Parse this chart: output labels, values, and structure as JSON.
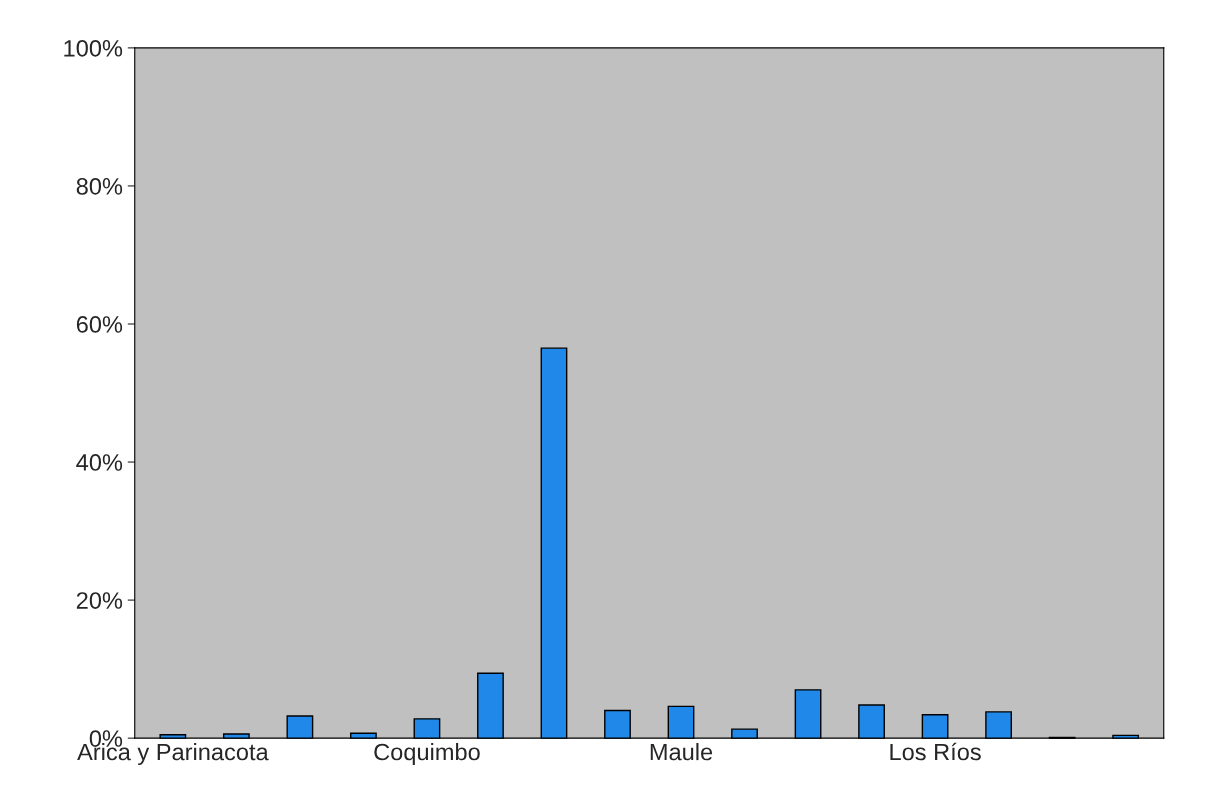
{
  "chart_data": {
    "type": "bar",
    "categories": [
      "Arica y Parinacota",
      null,
      null,
      null,
      "Coquimbo",
      null,
      null,
      null,
      "Maule",
      null,
      null,
      null,
      "Los Ríos",
      null,
      null,
      null
    ],
    "values": [
      0.5,
      0.6,
      3.2,
      0.7,
      2.8,
      9.4,
      56.5,
      4.0,
      4.6,
      1.3,
      7.0,
      4.8,
      3.4,
      3.8,
      0.1,
      0.4
    ],
    "color": "#1f88e8",
    "ylim": [
      0,
      100
    ],
    "yticks": [
      {
        "value": 0,
        "label": "0%"
      },
      {
        "value": 20,
        "label": "20%"
      },
      {
        "value": 40,
        "label": "40%"
      },
      {
        "value": 60,
        "label": "60%"
      },
      {
        "value": 80,
        "label": "80%"
      },
      {
        "value": 100,
        "label": "100%"
      }
    ],
    "grid": false,
    "legend": false
  }
}
